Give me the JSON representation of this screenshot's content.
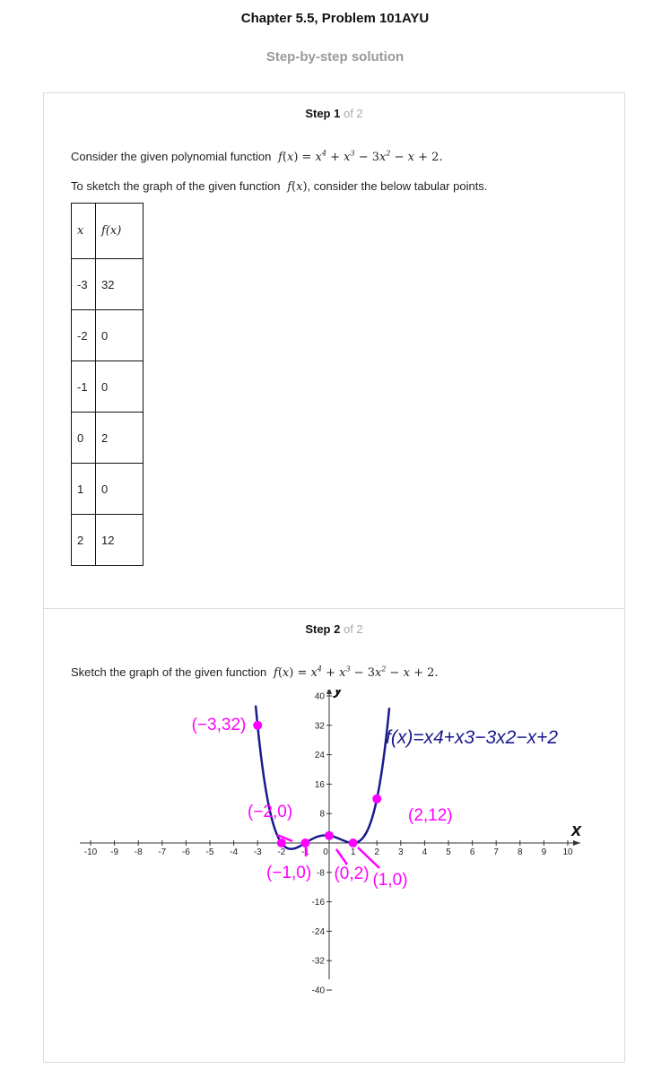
{
  "header": {
    "title": "Chapter 5.5, Problem 101AYU",
    "subtitle": "Step-by-step solution"
  },
  "step1": {
    "label_bold": "Step 1",
    "label_rest": "of 2",
    "line1_text": "Consider the given polynomial function",
    "line2_text_a": "To sketch the graph of the given function",
    "line2_text_b": ", consider the below tabular points.",
    "table": {
      "col1_header": "x",
      "col2_header": "f(x)",
      "rows": [
        {
          "x": "-3",
          "fx": "32"
        },
        {
          "x": "-2",
          "fx": "0"
        },
        {
          "x": "-1",
          "fx": "0"
        },
        {
          "x": "0",
          "fx": "2"
        },
        {
          "x": "1",
          "fx": "0"
        },
        {
          "x": "2",
          "fx": "12"
        }
      ]
    }
  },
  "step2": {
    "label_bold": "Step 2",
    "label_rest": "of 2",
    "line_text": "Sketch the graph of the given function"
  },
  "chart_data": {
    "type": "line",
    "function_label": "f(x)=x4+x3−3x2−x+2",
    "xlabel": "x",
    "ylabel": "y",
    "xlim": [
      -10,
      10
    ],
    "ylim": [
      -40,
      40
    ],
    "x_ticks": [
      -10,
      -9,
      -8,
      -7,
      -6,
      -5,
      -4,
      -3,
      -2,
      -1,
      0,
      1,
      2,
      3,
      4,
      5,
      6,
      7,
      8,
      9,
      10
    ],
    "y_ticks": [
      -40,
      -32,
      -24,
      -16,
      -8,
      8,
      16,
      24,
      32,
      40
    ],
    "points": [
      {
        "x": -3,
        "y": 32,
        "label": "(−3,32)"
      },
      {
        "x": -2,
        "y": 0,
        "label": "(−2,0)"
      },
      {
        "x": -1,
        "y": 0,
        "label": "(−1,0)"
      },
      {
        "x": 0,
        "y": 2,
        "label": "(0,2)"
      },
      {
        "x": 1,
        "y": 0,
        "label": "(1,0)"
      },
      {
        "x": 2,
        "y": 12,
        "label": "(2,12)"
      }
    ],
    "curve_color": "#1a1a8c",
    "point_color": "#ff00ff"
  }
}
